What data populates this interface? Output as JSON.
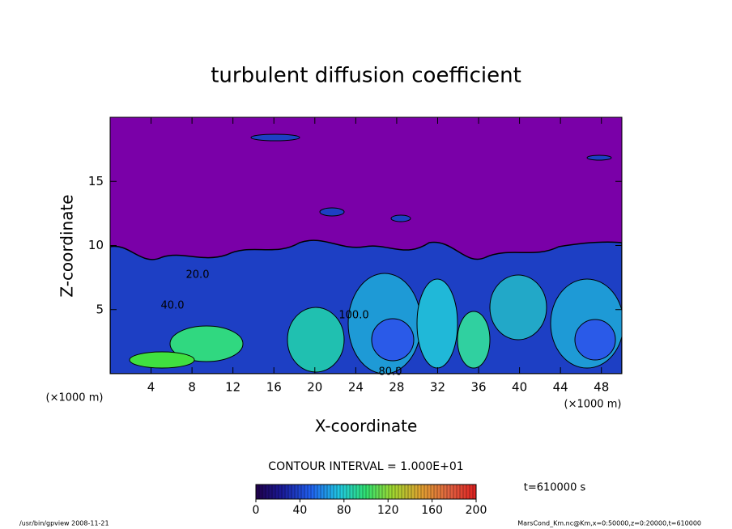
{
  "chart_data": {
    "type": "contour",
    "title": "turbulent diffusion coefficient",
    "xlabel": "X-coordinate",
    "ylabel": "Z-coordinate",
    "x_unit": "(×1000 m)",
    "y_unit": "(×1000 m)",
    "xlim": [
      0,
      50
    ],
    "xticks": [
      4,
      8,
      12,
      16,
      20,
      24,
      28,
      32,
      36,
      40,
      44,
      48
    ],
    "ylim": [
      0,
      20
    ],
    "yticks": [
      5,
      10,
      15
    ],
    "contour_labels": [
      "20.0",
      "40.0",
      "100.0",
      "80.0"
    ],
    "contour_interval": "CONTOUR INTERVAL = 1.000E+01",
    "colorbar": {
      "lim": [
        0,
        200
      ],
      "ticks": [
        0,
        40,
        80,
        120,
        160,
        200
      ]
    },
    "time_label": "t=610000 s",
    "footer_left": "/usr/bin/gpview  2008-11-21",
    "footer_right": "MarsCond_Km.nc@Km,x=0:50000,z=0:20000,t=610000"
  }
}
